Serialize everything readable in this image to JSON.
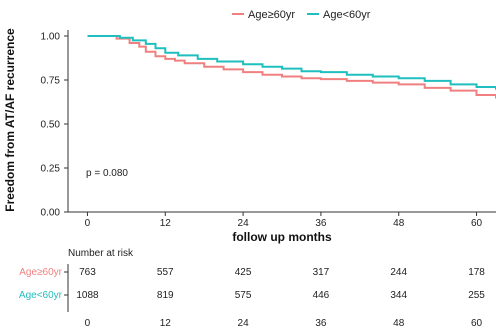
{
  "chart_data": {
    "type": "line",
    "subtype": "kaplan-meier",
    "title": "",
    "xlabel": "follow up months",
    "ylabel": "Freedom from AT/AF recurrence",
    "xlim": [
      -3,
      63
    ],
    "ylim": [
      0,
      1
    ],
    "xticks": [
      0,
      12,
      24,
      36,
      48,
      60
    ],
    "yticks": [
      0.0,
      0.25,
      0.5,
      0.75,
      1.0
    ],
    "ytick_labels": [
      "0.00",
      "0.25",
      "0.50",
      "0.75",
      "1.00"
    ],
    "grid": false,
    "legend_position": "top",
    "annotation": "p = 0.080",
    "series": [
      {
        "name": "Age≥60yr",
        "color": "#F08080",
        "x": [
          0,
          3.5,
          4.5,
          6.5,
          8,
          9,
          10.5,
          12,
          13.5,
          15,
          18,
          21,
          24,
          27,
          30,
          33,
          36,
          40,
          44,
          48,
          52,
          56,
          60,
          63
        ],
        "y": [
          1.0,
          1.0,
          0.985,
          0.96,
          0.94,
          0.91,
          0.885,
          0.87,
          0.86,
          0.845,
          0.825,
          0.81,
          0.795,
          0.78,
          0.77,
          0.76,
          0.755,
          0.745,
          0.735,
          0.725,
          0.705,
          0.69,
          0.665,
          0.645
        ]
      },
      {
        "name": "Age<60yr",
        "color": "#20BFBF",
        "x": [
          0,
          4,
          5,
          7,
          9,
          10.5,
          12,
          14,
          17,
          20,
          24,
          27,
          30,
          33,
          36,
          40,
          44,
          48,
          52,
          56,
          60,
          63
        ],
        "y": [
          1.0,
          1.0,
          0.99,
          0.975,
          0.955,
          0.93,
          0.905,
          0.89,
          0.87,
          0.855,
          0.84,
          0.825,
          0.815,
          0.8,
          0.795,
          0.78,
          0.77,
          0.76,
          0.745,
          0.725,
          0.71,
          0.695
        ]
      }
    ],
    "risk_table": {
      "title": "Number at risk",
      "times": [
        0,
        12,
        24,
        36,
        48,
        60
      ],
      "rows": [
        {
          "name": "Age≥60yr",
          "color": "#F08080",
          "values": [
            763,
            557,
            425,
            317,
            244,
            178
          ]
        },
        {
          "name": "Age<60yr",
          "color": "#20BFBF",
          "values": [
            1088,
            819,
            575,
            446,
            344,
            255
          ]
        }
      ]
    }
  }
}
